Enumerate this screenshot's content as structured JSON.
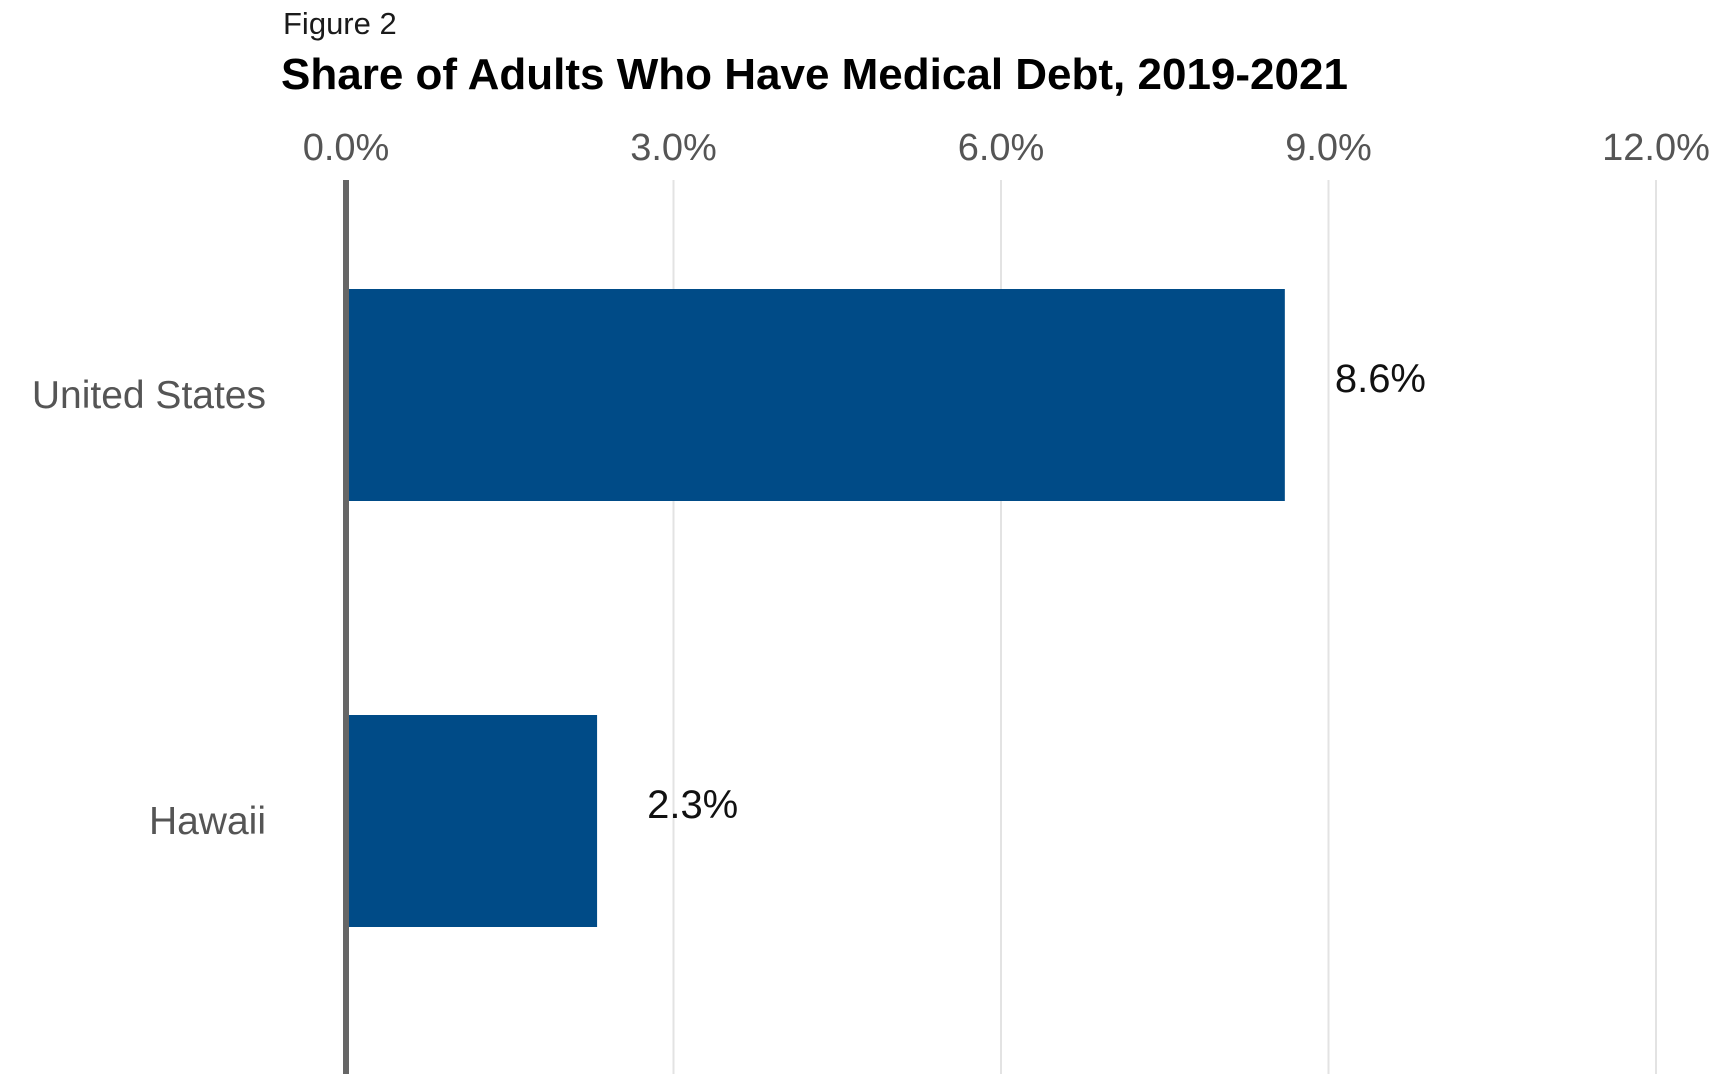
{
  "chart_data": {
    "type": "bar",
    "orientation": "horizontal",
    "figure_label": "Figure 2",
    "title": "Share of Adults Who Have Medical Debt, 2019-2021",
    "categories": [
      "United States",
      "Hawaii"
    ],
    "values": [
      8.6,
      2.3
    ],
    "data_labels": [
      "8.6%",
      "2.3%"
    ],
    "xlim": [
      0,
      12
    ],
    "x_ticks": [
      0,
      3,
      6,
      9,
      12
    ],
    "x_tick_labels": [
      "0.0%",
      "3.0%",
      "6.0%",
      "9.0%",
      "12.0%"
    ],
    "x_axis_position": "top",
    "grid": true,
    "legend": "none",
    "colors": {
      "bar": "#004b87",
      "gridline": "#e3e3e3",
      "baseline": "#666666"
    }
  }
}
